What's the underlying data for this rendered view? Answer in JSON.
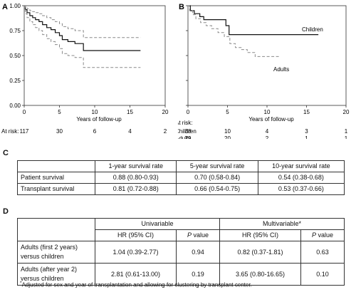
{
  "chart_data": [
    {
      "type": "line",
      "panel": "A",
      "xlabel": "Years of follow-up",
      "xlim": [
        0,
        20
      ],
      "ylim": [
        0,
        1
      ],
      "xticks": [
        "0",
        "5",
        "10",
        "15",
        "20"
      ],
      "yticks": [
        "0.00",
        "0.25",
        "0.50",
        "0.75",
        "1.00"
      ],
      "grid": false,
      "series": [
        {
          "style": "solid",
          "x": [
            0,
            0.15,
            0.4,
            0.8,
            1.2,
            1.6,
            2.1,
            2.6,
            3.2,
            3.8,
            4.4,
            5.0,
            5.4,
            6.2,
            7.2,
            8.4,
            16.5
          ],
          "y": [
            1.0,
            0.96,
            0.93,
            0.9,
            0.88,
            0.86,
            0.84,
            0.81,
            0.78,
            0.76,
            0.73,
            0.7,
            0.66,
            0.64,
            0.62,
            0.55,
            0.55
          ]
        },
        {
          "style": "dashed",
          "x": [
            0,
            0.15,
            0.4,
            0.8,
            1.2,
            1.6,
            2.1,
            2.6,
            3.2,
            3.8,
            4.4,
            5.0,
            5.4,
            6.2,
            7.2,
            8.4,
            16.5
          ],
          "y": [
            1.0,
            0.99,
            0.97,
            0.95,
            0.94,
            0.93,
            0.92,
            0.9,
            0.88,
            0.86,
            0.84,
            0.82,
            0.79,
            0.77,
            0.75,
            0.68,
            0.68
          ]
        },
        {
          "style": "dashed",
          "x": [
            0,
            0.15,
            0.4,
            0.8,
            1.2,
            1.6,
            2.1,
            2.6,
            3.2,
            3.8,
            4.4,
            5.0,
            5.4,
            6.2,
            7.2,
            8.4,
            16.5
          ],
          "y": [
            1.0,
            0.92,
            0.88,
            0.84,
            0.81,
            0.78,
            0.75,
            0.71,
            0.67,
            0.64,
            0.61,
            0.57,
            0.52,
            0.5,
            0.48,
            0.38,
            0.38
          ]
        }
      ],
      "at_risk": {
        "label": "At risk:",
        "rows": [
          {
            "name": "",
            "values": [
              "117",
              "30",
              "6",
              "4",
              "2"
            ]
          }
        ]
      }
    },
    {
      "type": "line",
      "panel": "B",
      "xlabel": "Years of follow-up",
      "xlim": [
        0,
        20
      ],
      "ylim": [
        0,
        1
      ],
      "xticks": [
        "0",
        "5",
        "10",
        "15",
        "20"
      ],
      "yticks": [
        "0.00",
        "0.25",
        "0.50",
        "0.75",
        "1.00"
      ],
      "grid": false,
      "series": [
        {
          "name": "Children",
          "style": "solid",
          "x": [
            0,
            0.3,
            0.8,
            1.5,
            2.0,
            3.0,
            4.8,
            5.2,
            16.5
          ],
          "y": [
            1.0,
            0.95,
            0.92,
            0.89,
            0.86,
            0.86,
            0.8,
            0.71,
            0.71
          ]
        },
        {
          "name": "Adults",
          "style": "dashed",
          "x": [
            0,
            0.2,
            0.6,
            1.0,
            1.6,
            2.3,
            3.0,
            3.8,
            4.6,
            5.3,
            6.0,
            6.8,
            7.5,
            8.5,
            11.5
          ],
          "y": [
            1.0,
            0.95,
            0.91,
            0.87,
            0.83,
            0.8,
            0.77,
            0.73,
            0.69,
            0.62,
            0.58,
            0.56,
            0.53,
            0.49,
            0.49
          ]
        }
      ],
      "at_risk": {
        "label": "At risk:",
        "rows": [
          {
            "name": "Children",
            "values": [
              "38",
              "10",
              "4",
              "3",
              "1"
            ]
          },
          {
            "name": "Adults",
            "values": [
              "79",
              "20",
              "2",
              "1",
              "1"
            ]
          }
        ]
      }
    },
    {
      "type": "table",
      "panel": "C",
      "columns": [
        "",
        "1-year survival rate",
        "5-year survival rate",
        "10-year survival rate"
      ],
      "rows": [
        [
          "Patient survival",
          "0.88 (0.80-0.93)",
          "0.70 (0.58-0.84)",
          "0.54 (0.38-0.68)"
        ],
        [
          "Transplant survival",
          "0.81 (0.72-0.88)",
          "0.66 (0.54-0.75)",
          "0.53 (0.37-0.66)"
        ]
      ]
    },
    {
      "type": "table",
      "panel": "D",
      "group_headers": [
        "Univariable",
        "Multivariable*"
      ],
      "columns": [
        "HR (95% CI)",
        "P",
        "value",
        "HR (95% CI)",
        "P",
        "value"
      ],
      "rows": [
        {
          "label1": "Adults (first 2 years)",
          "label2": "versus children",
          "uni_hr": "1.04 (0.39-2.77)",
          "uni_p": "0.94",
          "multi_hr": "0.82 (0.37-1.81)",
          "multi_p": "0.63"
        },
        {
          "label1": "Adults (after year 2)",
          "label2": "versus children",
          "uni_hr": "2.81 (0.61-13.00)",
          "uni_p": "0.19",
          "multi_hr": "3.65 (0.80-16.65)",
          "multi_p": "0.10"
        }
      ],
      "footnote_mark": "*",
      "footnote": "Adjusted for sex and year of transplantation and allowing for clustering by transplant center."
    }
  ]
}
